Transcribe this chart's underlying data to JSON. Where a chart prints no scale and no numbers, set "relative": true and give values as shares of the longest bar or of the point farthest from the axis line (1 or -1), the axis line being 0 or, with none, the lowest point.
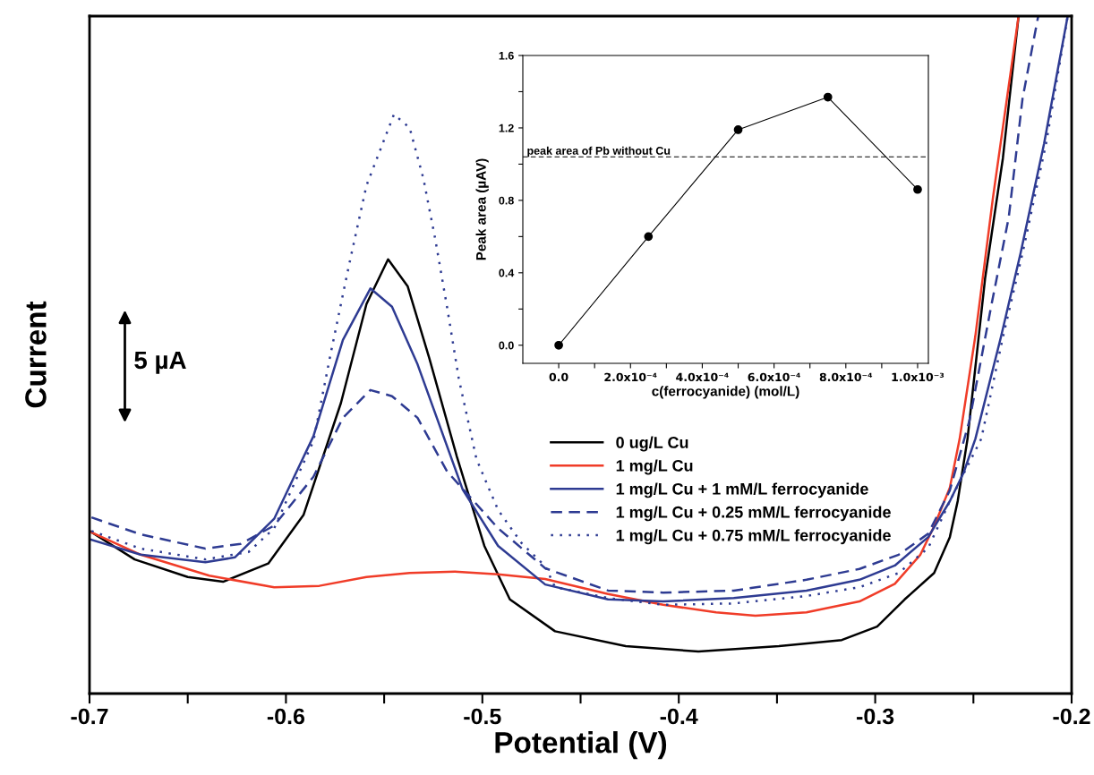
{
  "chart_data": [
    {
      "type": "line",
      "relative": true,
      "xlabel": "Potential (V)",
      "ylabel": "Current",
      "xlim": [
        -0.7,
        -0.2
      ],
      "xticks": [
        -0.7,
        {
          "value": -0.65,
          "label": null
        },
        -0.6,
        {
          "value": -0.55,
          "label": null
        },
        -0.5,
        {
          "value": -0.45,
          "label": null
        },
        -0.4,
        {
          "value": -0.35,
          "label": null
        },
        -0.3,
        {
          "value": -0.25,
          "label": null
        },
        -0.2
      ],
      "tick_labels": "x",
      "legend": "center",
      "annotations": [
        "5 µA"
      ],
      "series": [
        {
          "name": "0 ug/L Cu",
          "color": "#000000",
          "line_style": "solid",
          "x": [
            -0.7,
            -0.677,
            -0.65,
            -0.632,
            -0.609,
            -0.591,
            -0.572,
            -0.559,
            -0.548,
            -0.538,
            -0.527,
            -0.513,
            -0.499,
            -0.486,
            -0.463,
            -0.427,
            -0.39,
            -0.349,
            -0.317,
            -0.299,
            -0.285,
            -0.27,
            -0.262,
            -0.258,
            -0.253,
            -0.244,
            -0.235,
            -0.227
          ],
          "values": [
            0.24,
            0.198,
            0.172,
            0.165,
            0.192,
            0.264,
            0.429,
            0.575,
            0.641,
            0.601,
            0.495,
            0.35,
            0.218,
            0.139,
            0.092,
            0.07,
            0.062,
            0.07,
            0.079,
            0.099,
            0.139,
            0.178,
            0.231,
            0.284,
            0.376,
            0.614,
            0.79,
            1.0
          ]
        },
        {
          "name": "1 mg/L Cu",
          "color": "#f03c28",
          "line_style": "solid",
          "x": [
            -0.699,
            -0.674,
            -0.639,
            -0.606,
            -0.583,
            -0.559,
            -0.537,
            -0.514,
            -0.492,
            -0.468,
            -0.436,
            -0.408,
            -0.381,
            -0.361,
            -0.335,
            -0.308,
            -0.29,
            -0.277,
            -0.27,
            -0.262,
            -0.257,
            -0.249,
            -0.24,
            -0.227
          ],
          "values": [
            0.238,
            0.205,
            0.174,
            0.157,
            0.159,
            0.172,
            0.178,
            0.18,
            0.176,
            0.169,
            0.147,
            0.131,
            0.12,
            0.115,
            0.12,
            0.136,
            0.162,
            0.205,
            0.247,
            0.304,
            0.376,
            0.528,
            0.733,
            1.0
          ]
        },
        {
          "name": "1 mg/L Cu + 1 mM/L ferrocyanide",
          "color": "#2e3b92",
          "line_style": "solid",
          "x": [
            -0.699,
            -0.674,
            -0.641,
            -0.626,
            -0.606,
            -0.586,
            -0.571,
            -0.557,
            -0.546,
            -0.533,
            -0.51,
            -0.492,
            -0.468,
            -0.436,
            -0.408,
            -0.372,
            -0.335,
            -0.308,
            -0.29,
            -0.273,
            -0.262,
            -0.255,
            -0.249,
            -0.236,
            -0.226,
            -0.214,
            -0.202
          ],
          "values": [
            0.227,
            0.205,
            0.194,
            0.201,
            0.258,
            0.38,
            0.522,
            0.598,
            0.571,
            0.486,
            0.301,
            0.218,
            0.161,
            0.139,
            0.136,
            0.141,
            0.152,
            0.168,
            0.189,
            0.231,
            0.284,
            0.326,
            0.376,
            0.526,
            0.65,
            0.812,
            1.0
          ]
        },
        {
          "name": "1 mg/L Cu + 0.25 mM/L ferrocyanide",
          "color": "#2e3b92",
          "line_style": "dashed",
          "x": [
            -0.699,
            -0.674,
            -0.641,
            -0.623,
            -0.606,
            -0.586,
            -0.571,
            -0.557,
            -0.546,
            -0.533,
            -0.518,
            -0.492,
            -0.468,
            -0.436,
            -0.408,
            -0.372,
            -0.335,
            -0.308,
            -0.288,
            -0.273,
            -0.262,
            -0.252,
            -0.241,
            -0.232,
            -0.225,
            -0.217
          ],
          "values": [
            0.26,
            0.235,
            0.214,
            0.221,
            0.248,
            0.32,
            0.407,
            0.448,
            0.439,
            0.407,
            0.328,
            0.244,
            0.185,
            0.152,
            0.149,
            0.152,
            0.168,
            0.184,
            0.205,
            0.236,
            0.3,
            0.403,
            0.571,
            0.703,
            0.878,
            1.0
          ]
        },
        {
          "name": "1 mg/L Cu + 0.75 mM/L ferrocyanide",
          "color": "#2e3b92",
          "line_style": "dotted",
          "x": [
            -0.699,
            -0.674,
            -0.641,
            -0.619,
            -0.606,
            -0.586,
            -0.577,
            -0.568,
            -0.559,
            -0.545,
            -0.537,
            -0.53,
            -0.524,
            -0.518,
            -0.512,
            -0.503,
            -0.492,
            -0.48,
            -0.468,
            -0.463,
            -0.436,
            -0.408,
            -0.372,
            -0.335,
            -0.308,
            -0.288,
            -0.273,
            -0.262,
            -0.246,
            -0.235,
            -0.225,
            -0.213,
            -0.202
          ],
          "values": [
            0.24,
            0.214,
            0.198,
            0.209,
            0.244,
            0.373,
            0.505,
            0.631,
            0.75,
            0.855,
            0.835,
            0.76,
            0.671,
            0.571,
            0.465,
            0.346,
            0.271,
            0.222,
            0.188,
            0.157,
            0.141,
            0.131,
            0.133,
            0.144,
            0.157,
            0.178,
            0.215,
            0.284,
            0.376,
            0.526,
            0.65,
            0.812,
            1.0
          ]
        }
      ]
    },
    {
      "type": "line",
      "xlabel": "c(ferrocyanide) (mol/L)",
      "ylabel": "Peak area (µAV)",
      "xlim": [
        -0.0001,
        0.00103
      ],
      "ylim": [
        -0.1,
        1.6
      ],
      "marker": "circle",
      "line_style": "solid",
      "xticks": [
        {
          "value": 0,
          "label": "0.0"
        },
        {
          "value": 0.0001,
          "label": null
        },
        {
          "value": 0.0002,
          "label": "2.0x10⁻⁴"
        },
        {
          "value": 0.0003,
          "label": null
        },
        {
          "value": 0.0004,
          "label": "4.0x10⁻⁴"
        },
        {
          "value": 0.0005,
          "label": null
        },
        {
          "value": 0.0006,
          "label": "6.0x10⁻⁴"
        },
        {
          "value": 0.0007,
          "label": null
        },
        {
          "value": 0.0008,
          "label": "8.0x10⁻⁴"
        },
        {
          "value": 0.0009,
          "label": null
        },
        {
          "value": 0.001,
          "label": "1.0x10⁻³"
        }
      ],
      "yticks": [
        {
          "value": 0,
          "label": "0.0"
        },
        {
          "value": 0.2,
          "label": null
        },
        0.4,
        {
          "value": 0.6,
          "label": null
        },
        0.8,
        {
          "value": 1.0,
          "label": null
        },
        1.2,
        {
          "value": 1.4,
          "label": null
        },
        1.6
      ],
      "ref_lines": [
        {
          "axis": "y",
          "value": 1.04,
          "label": "peak area of Pb without Cu",
          "line_style": "dashed",
          "color": "#000000"
        }
      ],
      "series": [
        {
          "color": "#000000",
          "x": [
            0,
            0.00025,
            0.0005,
            0.00075,
            0.001
          ],
          "values": [
            0.0,
            0.6,
            1.19,
            1.37,
            0.86
          ]
        }
      ]
    }
  ]
}
